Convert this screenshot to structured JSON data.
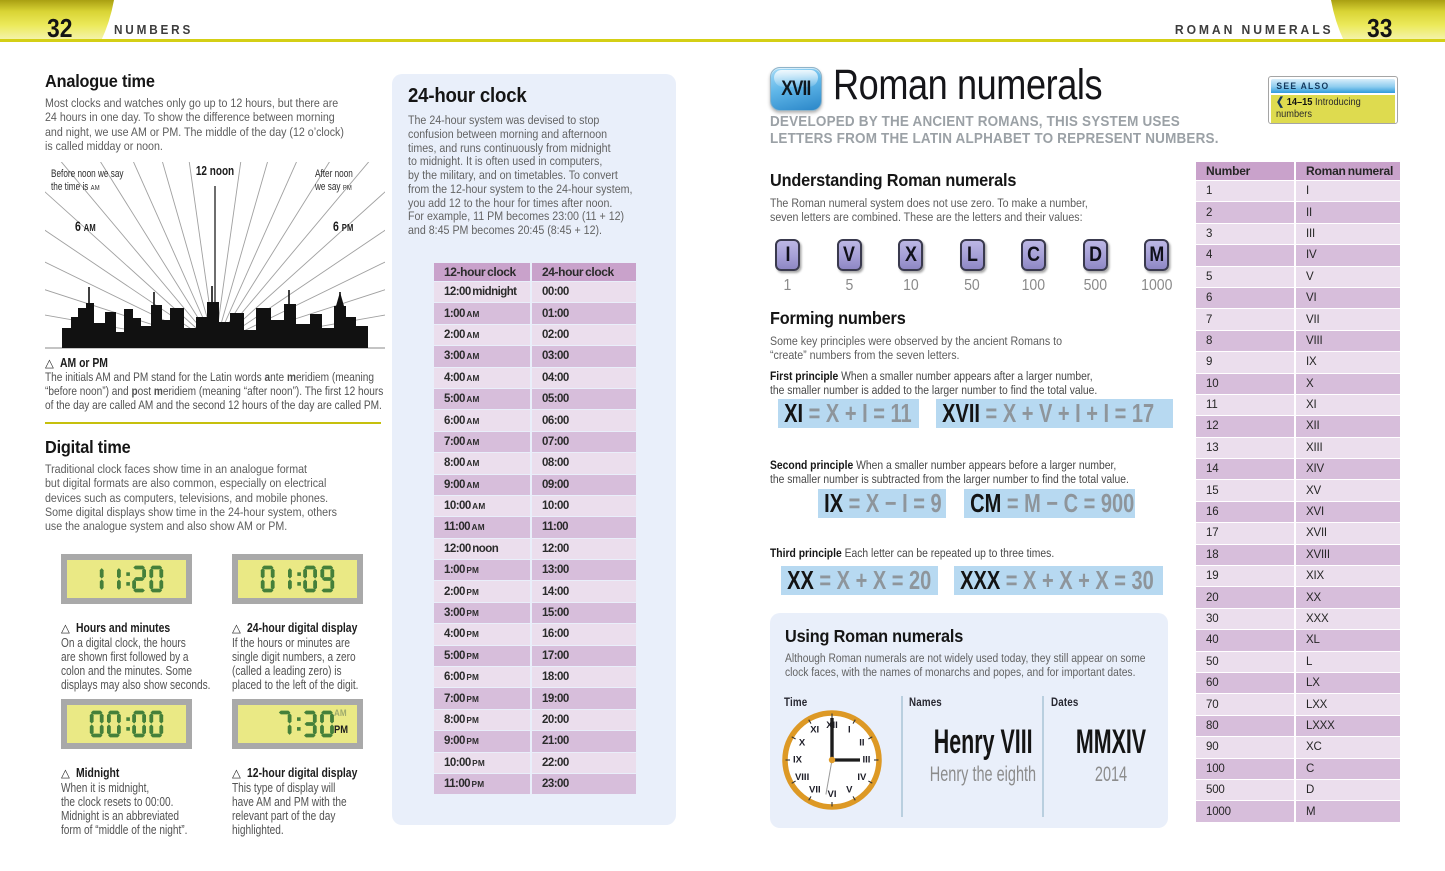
{
  "header": {
    "left_page_number": "32",
    "left_section": "NUMBERS",
    "right_section": "ROMAN NUMERALS",
    "right_page_number": "33"
  },
  "colors": {
    "header_yellow": "#d4cf15",
    "panel_blue": "#e9effa",
    "table_header_purple": "#c9a2cb",
    "table_row_dark": "#d7bedb",
    "table_row_light": "#ebdeed",
    "equation_highlight_blue": "#b7d9f1",
    "lcd_yellow": "#eae985",
    "lcd_digit_green": "#45803a",
    "clock_ring_orange": "#dd9925",
    "key_purple": "#a59fd6",
    "badge_blue": "#2a86c8",
    "see_also_yellow": "#dedb4f"
  },
  "analogue": {
    "heading": "Analogue time",
    "body": "Most clocks and watches only go up to 12 hours, but there are\n24 hours in one day. To show the difference between morning\nand night, we use AM or PM. The middle of the day (12 o’clock)\nis called midday or noon.",
    "label_noon": "12 noon",
    "label_before": [
      {
        "t": "Before noon we say\nthe time is "
      },
      {
        "t": "AM",
        "sc": true
      }
    ],
    "label_after": [
      {
        "t": "After noon\nwe say "
      },
      {
        "t": "PM",
        "sc": true
      }
    ],
    "label_six_am": [
      {
        "t": "6 "
      },
      {
        "t": "AM",
        "sc": true
      }
    ],
    "label_six_pm": [
      {
        "t": "6 "
      },
      {
        "t": "PM",
        "sc": true
      }
    ],
    "caption_marker": "△",
    "caption_title": "AM or PM",
    "caption_body": [
      {
        "t": "The initials AM and PM stand for the Latin words "
      },
      {
        "t": "a",
        "b": true
      },
      {
        "t": "nte "
      },
      {
        "t": "m",
        "b": true
      },
      {
        "t": "eridiem (meaning\n“before noon”) and "
      },
      {
        "t": "p",
        "b": true
      },
      {
        "t": "ost "
      },
      {
        "t": "m",
        "b": true
      },
      {
        "t": "eridiem (meaning “after noon”). The first 12 hours\nof the day are called AM and the second 12 hours of the day are called PM."
      }
    ]
  },
  "digital": {
    "heading": "Digital time",
    "body": "Traditional clock faces show time in an analogue format\nbut digital formats are also common, especially on electrical\ndevices such as computers, televisions, and mobile phones.\nSome digital displays show time in the 24-hour system, others\nuse the analogue system and also show AM or PM.",
    "clocks": [
      {
        "display": "11:20",
        "caption_marker": "△",
        "caption": "Hours and minutes",
        "body": "On a digital clock, the hours\nare shown first followed by a\ncolon and the minutes. Some\ndisplays may also show seconds."
      },
      {
        "display": "01:09",
        "caption_marker": "△",
        "caption": "24-hour digital display",
        "body": "If the hours or minutes are\nsingle digit numbers, a zero\n(called a leading zero) is\nplaced to the left of the digit."
      },
      {
        "display": "00:00",
        "caption_marker": "△",
        "caption": "Midnight",
        "body": "When it is midnight,\nthe clock resets to 00:00.\nMidnight is an abbreviated\nform of “middle of the night”."
      },
      {
        "display": " 7:30",
        "am": "AM",
        "pm": "PM",
        "caption_marker": "△",
        "caption": "12-hour digital display",
        "body": "This type of display will\nhave AM and PM with the\nrelevant part of the day\nhighlighted."
      }
    ]
  },
  "panel24": {
    "heading": "24-hour clock",
    "body": "The 24-hour system was devised to stop\nconfusion between morning and afternoon\ntimes, and runs continuously from midnight\nto midnight. It is often used in computers,\nby the military, and on timetables. To convert\nfrom the 12-hour system to the 24-hour system,\nyou add 12 to the hour for times after noon.\nFor example, 11 PM becomes 23:00 (11 + 12)\nand 8:45 PM becomes 20:45 (8:45 + 12).",
    "table": {
      "headers": [
        "12-hour clock",
        "24-hour clock"
      ],
      "rows": [
        {
          "l": "12:00 midnight",
          "s": "",
          "r": "00:00"
        },
        {
          "l": "1:00",
          "s": "AM",
          "r": "01:00"
        },
        {
          "l": "2:00",
          "s": "AM",
          "r": "02:00"
        },
        {
          "l": "3:00",
          "s": "AM",
          "r": "03:00"
        },
        {
          "l": "4:00",
          "s": "AM",
          "r": "04:00"
        },
        {
          "l": "5:00",
          "s": "AM",
          "r": "05:00"
        },
        {
          "l": "6:00",
          "s": "AM",
          "r": "06:00"
        },
        {
          "l": "7:00",
          "s": "AM",
          "r": "07:00"
        },
        {
          "l": "8:00",
          "s": "AM",
          "r": "08:00"
        },
        {
          "l": "9:00",
          "s": "AM",
          "r": "09:00"
        },
        {
          "l": "10:00",
          "s": "AM",
          "r": "10:00"
        },
        {
          "l": "11:00",
          "s": "AM",
          "r": "11:00"
        },
        {
          "l": "12:00 noon",
          "s": "",
          "r": "12:00"
        },
        {
          "l": "1:00",
          "s": "PM",
          "r": "13:00"
        },
        {
          "l": "2:00",
          "s": "PM",
          "r": "14:00"
        },
        {
          "l": "3:00",
          "s": "PM",
          "r": "15:00"
        },
        {
          "l": "4:00",
          "s": "PM",
          "r": "16:00"
        },
        {
          "l": "5:00",
          "s": "PM",
          "r": "17:00"
        },
        {
          "l": "6:00",
          "s": "PM",
          "r": "18:00"
        },
        {
          "l": "7:00",
          "s": "PM",
          "r": "19:00"
        },
        {
          "l": "8:00",
          "s": "PM",
          "r": "20:00"
        },
        {
          "l": "9:00",
          "s": "PM",
          "r": "21:00"
        },
        {
          "l": "10:00",
          "s": "PM",
          "r": "22:00"
        },
        {
          "l": "11:00",
          "s": "PM",
          "r": "23:00"
        }
      ]
    }
  },
  "right_page": {
    "badge": "XVII",
    "title": "Roman numerals",
    "subtitle": "DEVELOPED BY THE ANCIENT ROMANS, THIS SYSTEM USES\nLETTERS FROM THE LATIN ALPHABET TO REPRESENT NUMBERS.",
    "see_also": {
      "title": "SEE ALSO",
      "arrow": "❮",
      "pages": "14–15",
      "label": "Introducing numbers"
    },
    "understanding": {
      "heading": "Understanding Roman numerals",
      "body": "The Roman numeral system does not use zero. To make a number,\nseven letters are combined. These are the letters and their values:",
      "letters": [
        {
          "letter": "I",
          "value": "1"
        },
        {
          "letter": "V",
          "value": "5"
        },
        {
          "letter": "X",
          "value": "10"
        },
        {
          "letter": "L",
          "value": "50"
        },
        {
          "letter": "C",
          "value": "100"
        },
        {
          "letter": "D",
          "value": "500"
        },
        {
          "letter": "M",
          "value": "1000"
        }
      ]
    },
    "forming": {
      "heading": "Forming numbers",
      "body": "Some key principles were observed by the ancient Romans to\n“create” numbers from the seven letters.",
      "principles": [
        {
          "lead": "First principle",
          "text": " When a smaller number appears after a larger number,\nthe smaller number is added to the larger number to find the total value.",
          "equations": [
            {
              "black": "XI",
              "gray": " = X + I = 11"
            },
            {
              "black": "XVII",
              "gray": " = X + V + I + I = 17"
            }
          ]
        },
        {
          "lead": "Second principle",
          "text": " When a smaller number appears before a larger number,\nthe smaller number is subtracted from the larger number to find the total value.",
          "equations": [
            {
              "black": "IX",
              "gray": " = X − I = 9"
            },
            {
              "black": "CM",
              "gray": " = M − C = 900"
            }
          ]
        },
        {
          "lead": "Third principle",
          "text": " Each letter can be repeated up to three times.",
          "equations": [
            {
              "black": "XX",
              "gray": " = X + X = 20"
            },
            {
              "black": "XXX",
              "gray": " = X + X + X = 30"
            }
          ]
        }
      ]
    },
    "using": {
      "heading": "Using Roman numerals",
      "body": "Although Roman numerals are not widely used today, they still appear on some\nclock faces, with the names of monarchs and popes, and for important dates.",
      "time_label": "Time",
      "names_label": "Names",
      "dates_label": "Dates",
      "name_value": "Henry VIII",
      "name_sub": "Henry the eighth",
      "date_value": "MMXIV",
      "date_sub": "2014",
      "clock_numerals": [
        "XII",
        "I",
        "II",
        "III",
        "IV",
        "V",
        "VI",
        "VII",
        "VIII",
        "IX",
        "X",
        "XI"
      ]
    },
    "roman_table": {
      "headers": [
        "Number",
        "Roman numeral"
      ],
      "rows": [
        {
          "n": "1",
          "r": "I"
        },
        {
          "n": "2",
          "r": "II"
        },
        {
          "n": "3",
          "r": "III"
        },
        {
          "n": "4",
          "r": "IV"
        },
        {
          "n": "5",
          "r": "V"
        },
        {
          "n": "6",
          "r": "VI"
        },
        {
          "n": "7",
          "r": "VII"
        },
        {
          "n": "8",
          "r": "VIII"
        },
        {
          "n": "9",
          "r": "IX"
        },
        {
          "n": "10",
          "r": "X"
        },
        {
          "n": "11",
          "r": "XI"
        },
        {
          "n": "12",
          "r": "XII"
        },
        {
          "n": "13",
          "r": "XIII"
        },
        {
          "n": "14",
          "r": "XIV"
        },
        {
          "n": "15",
          "r": "XV"
        },
        {
          "n": "16",
          "r": "XVI"
        },
        {
          "n": "17",
          "r": "XVII"
        },
        {
          "n": "18",
          "r": "XVIII"
        },
        {
          "n": "19",
          "r": "XIX"
        },
        {
          "n": "20",
          "r": "XX"
        },
        {
          "n": "30",
          "r": "XXX"
        },
        {
          "n": "40",
          "r": "XL"
        },
        {
          "n": "50",
          "r": "L"
        },
        {
          "n": "60",
          "r": "LX"
        },
        {
          "n": "70",
          "r": "LXX"
        },
        {
          "n": "80",
          "r": "LXXX"
        },
        {
          "n": "90",
          "r": "XC"
        },
        {
          "n": "100",
          "r": "C"
        },
        {
          "n": "500",
          "r": "D"
        },
        {
          "n": "1000",
          "r": "M"
        }
      ]
    }
  }
}
